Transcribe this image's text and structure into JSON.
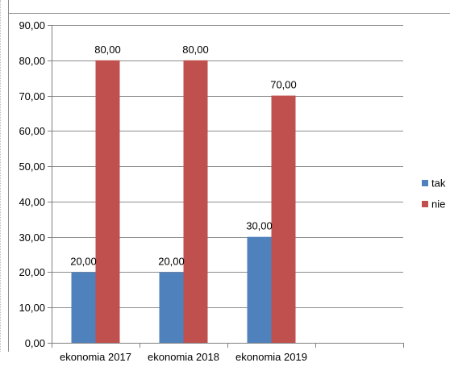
{
  "chart_data": {
    "type": "bar",
    "categories": [
      "ekonomia 2017",
      "ekonomia 2018",
      "ekonomia 2019",
      ""
    ],
    "series": [
      {
        "name": "tak",
        "values": [
          20,
          20,
          30,
          null
        ],
        "labels": [
          "20,00",
          "20,00",
          "30,00",
          ""
        ],
        "color": "#4f81bd"
      },
      {
        "name": "nie",
        "values": [
          80,
          80,
          70,
          null
        ],
        "labels": [
          "80,00",
          "80,00",
          "70,00",
          ""
        ],
        "color": "#c0504d"
      }
    ],
    "yticks": [
      0,
      10,
      20,
      30,
      40,
      50,
      60,
      70,
      80,
      90
    ],
    "ytick_labels": [
      "0,00",
      "10,00",
      "20,00",
      "30,00",
      "40,00",
      "50,00",
      "60,00",
      "70,00",
      "80,00",
      "90,00"
    ],
    "ylim": [
      0,
      90
    ],
    "grid": true,
    "legend_position": "right",
    "gridline_color": "#8c8c8c",
    "axis_color": "#7f7f7f"
  }
}
